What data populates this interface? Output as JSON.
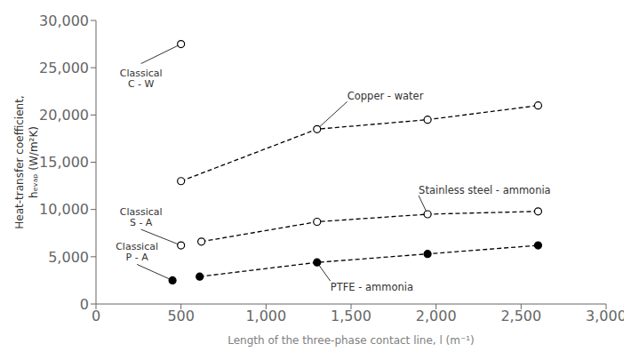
{
  "chart_data": {
    "type": "line",
    "xlabel": "Length of the three-phase contact line,  l   (m⁻¹)",
    "ylabel": [
      "Heat-transfer coefficient,",
      "hₑᵥₐₚ  (W/m²K)"
    ],
    "xlim": [
      0,
      3000
    ],
    "ylim": [
      0,
      30000
    ],
    "xticks": [
      0,
      500,
      {
        "value": 1000,
        "label": "1,000"
      },
      {
        "value": 1500,
        "label": "1,500"
      },
      {
        "value": 2000,
        "label": "2,000"
      },
      {
        "value": 2500,
        "label": "2,500"
      },
      {
        "value": 3000,
        "label": "3,000"
      }
    ],
    "yticks": [
      0,
      {
        "value": 5000,
        "label": "5,000"
      },
      {
        "value": 10000,
        "label": "10,000"
      },
      {
        "value": 15000,
        "label": "15,000"
      },
      {
        "value": 20000,
        "label": "20,000"
      },
      {
        "value": 25000,
        "label": "25,000"
      },
      {
        "value": 30000,
        "label": "30,000"
      }
    ],
    "grid": false,
    "series": [
      {
        "name": "Copper - water",
        "type": "line",
        "line_style": "dashed",
        "marker": "open circle",
        "color": "#000000",
        "x": [
          500,
          1300,
          1950,
          2600
        ],
        "values": [
          13000,
          18500,
          19500,
          21000
        ]
      },
      {
        "type": "scatter",
        "marker": "open circle",
        "color": "#000000",
        "x": [
          500
        ],
        "values": [
          27500
        ],
        "annotation": [
          "Classical",
          "C - W"
        ]
      },
      {
        "name": "Stainless steel - ammonia",
        "type": "line",
        "line_style": "dashed",
        "marker": "open circle",
        "color": "#000000",
        "x": [
          620,
          1300,
          1950,
          2600
        ],
        "values": [
          6600,
          8700,
          9500,
          9800
        ]
      },
      {
        "type": "scatter",
        "marker": "open circle",
        "color": "#000000",
        "x": [
          500
        ],
        "values": [
          6200
        ],
        "annotation": [
          "Classical",
          "S - A"
        ]
      },
      {
        "name": "PTFE - ammonia",
        "type": "line",
        "line_style": "dashed",
        "marker": "filled circle",
        "color": "#000000",
        "x": [
          610,
          1300,
          1950,
          2600
        ],
        "values": [
          2900,
          4400,
          5300,
          6200
        ]
      },
      {
        "type": "scatter",
        "marker": "filled circle",
        "color": "#000000",
        "x": [
          450
        ],
        "values": [
          2500
        ],
        "annotation": [
          "Classical",
          "P - A"
        ]
      }
    ]
  }
}
